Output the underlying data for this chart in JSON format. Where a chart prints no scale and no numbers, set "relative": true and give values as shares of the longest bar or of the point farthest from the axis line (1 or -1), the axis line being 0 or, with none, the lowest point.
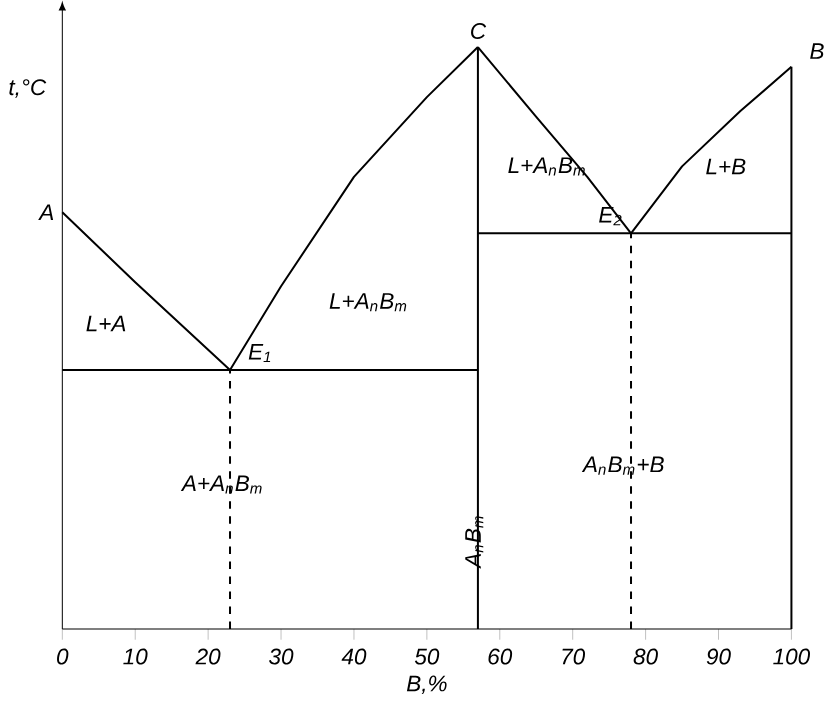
{
  "chart_data": {
    "type": "line",
    "relative": true,
    "xlabel": "B,%",
    "ylabel": "t,°C",
    "xlim": [
      0,
      100
    ],
    "xticks": [
      0,
      10,
      20,
      30,
      40,
      50,
      60,
      70,
      80,
      90,
      100
    ],
    "series": [
      {
        "color": "#000000",
        "x": [
          0,
          10,
          23,
          30,
          40,
          50,
          57
        ],
        "values": [
          0.716,
          0.596,
          0.445,
          0.589,
          0.777,
          0.914,
          1
        ]
      },
      {
        "color": "#000000",
        "x": [
          57,
          65,
          72,
          78,
          85,
          93,
          100
        ],
        "values": [
          1,
          0.88,
          0.777,
          0.68,
          0.795,
          0.89,
          0.966
        ]
      },
      {
        "color": "#000000",
        "x": [
          0,
          57
        ],
        "values": [
          0.445,
          0.445
        ]
      },
      {
        "color": "#000000",
        "x": [
          57,
          100
        ],
        "values": [
          0.68,
          0.68
        ]
      },
      {
        "color": "#000000",
        "x": [
          57,
          57
        ],
        "values": [
          0,
          1
        ]
      },
      {
        "color": "#000000",
        "x": [
          100,
          100
        ],
        "values": [
          0,
          0.966
        ]
      },
      {
        "color": "#000000",
        "x": [
          23,
          23
        ],
        "values": [
          0,
          0.445
        ],
        "line_style": "dashed"
      },
      {
        "color": "#000000",
        "x": [
          78,
          78
        ],
        "values": [
          0,
          0.68
        ],
        "line_style": "dashed"
      }
    ],
    "annotations": [
      {
        "text": "A",
        "x": 0,
        "y": 0.716
      },
      {
        "text": "C",
        "x": 57,
        "y": 1
      },
      {
        "text": "B",
        "x": 100,
        "y": 0.966
      },
      {
        "text": "E$_{1}$",
        "x": 23,
        "y": 0.445
      },
      {
        "text": "E$_{2}$",
        "x": 78,
        "y": 0.68
      },
      "L+A",
      "L+A$_{n}$B$_{m}$",
      "L+A$_{n}$B$_{m}$",
      "L+B",
      "A+A$_{n}$B$_{m}$",
      "A$_{n}$B$_{m}$+B",
      "A$_{n}$B$_{m}$"
    ]
  }
}
